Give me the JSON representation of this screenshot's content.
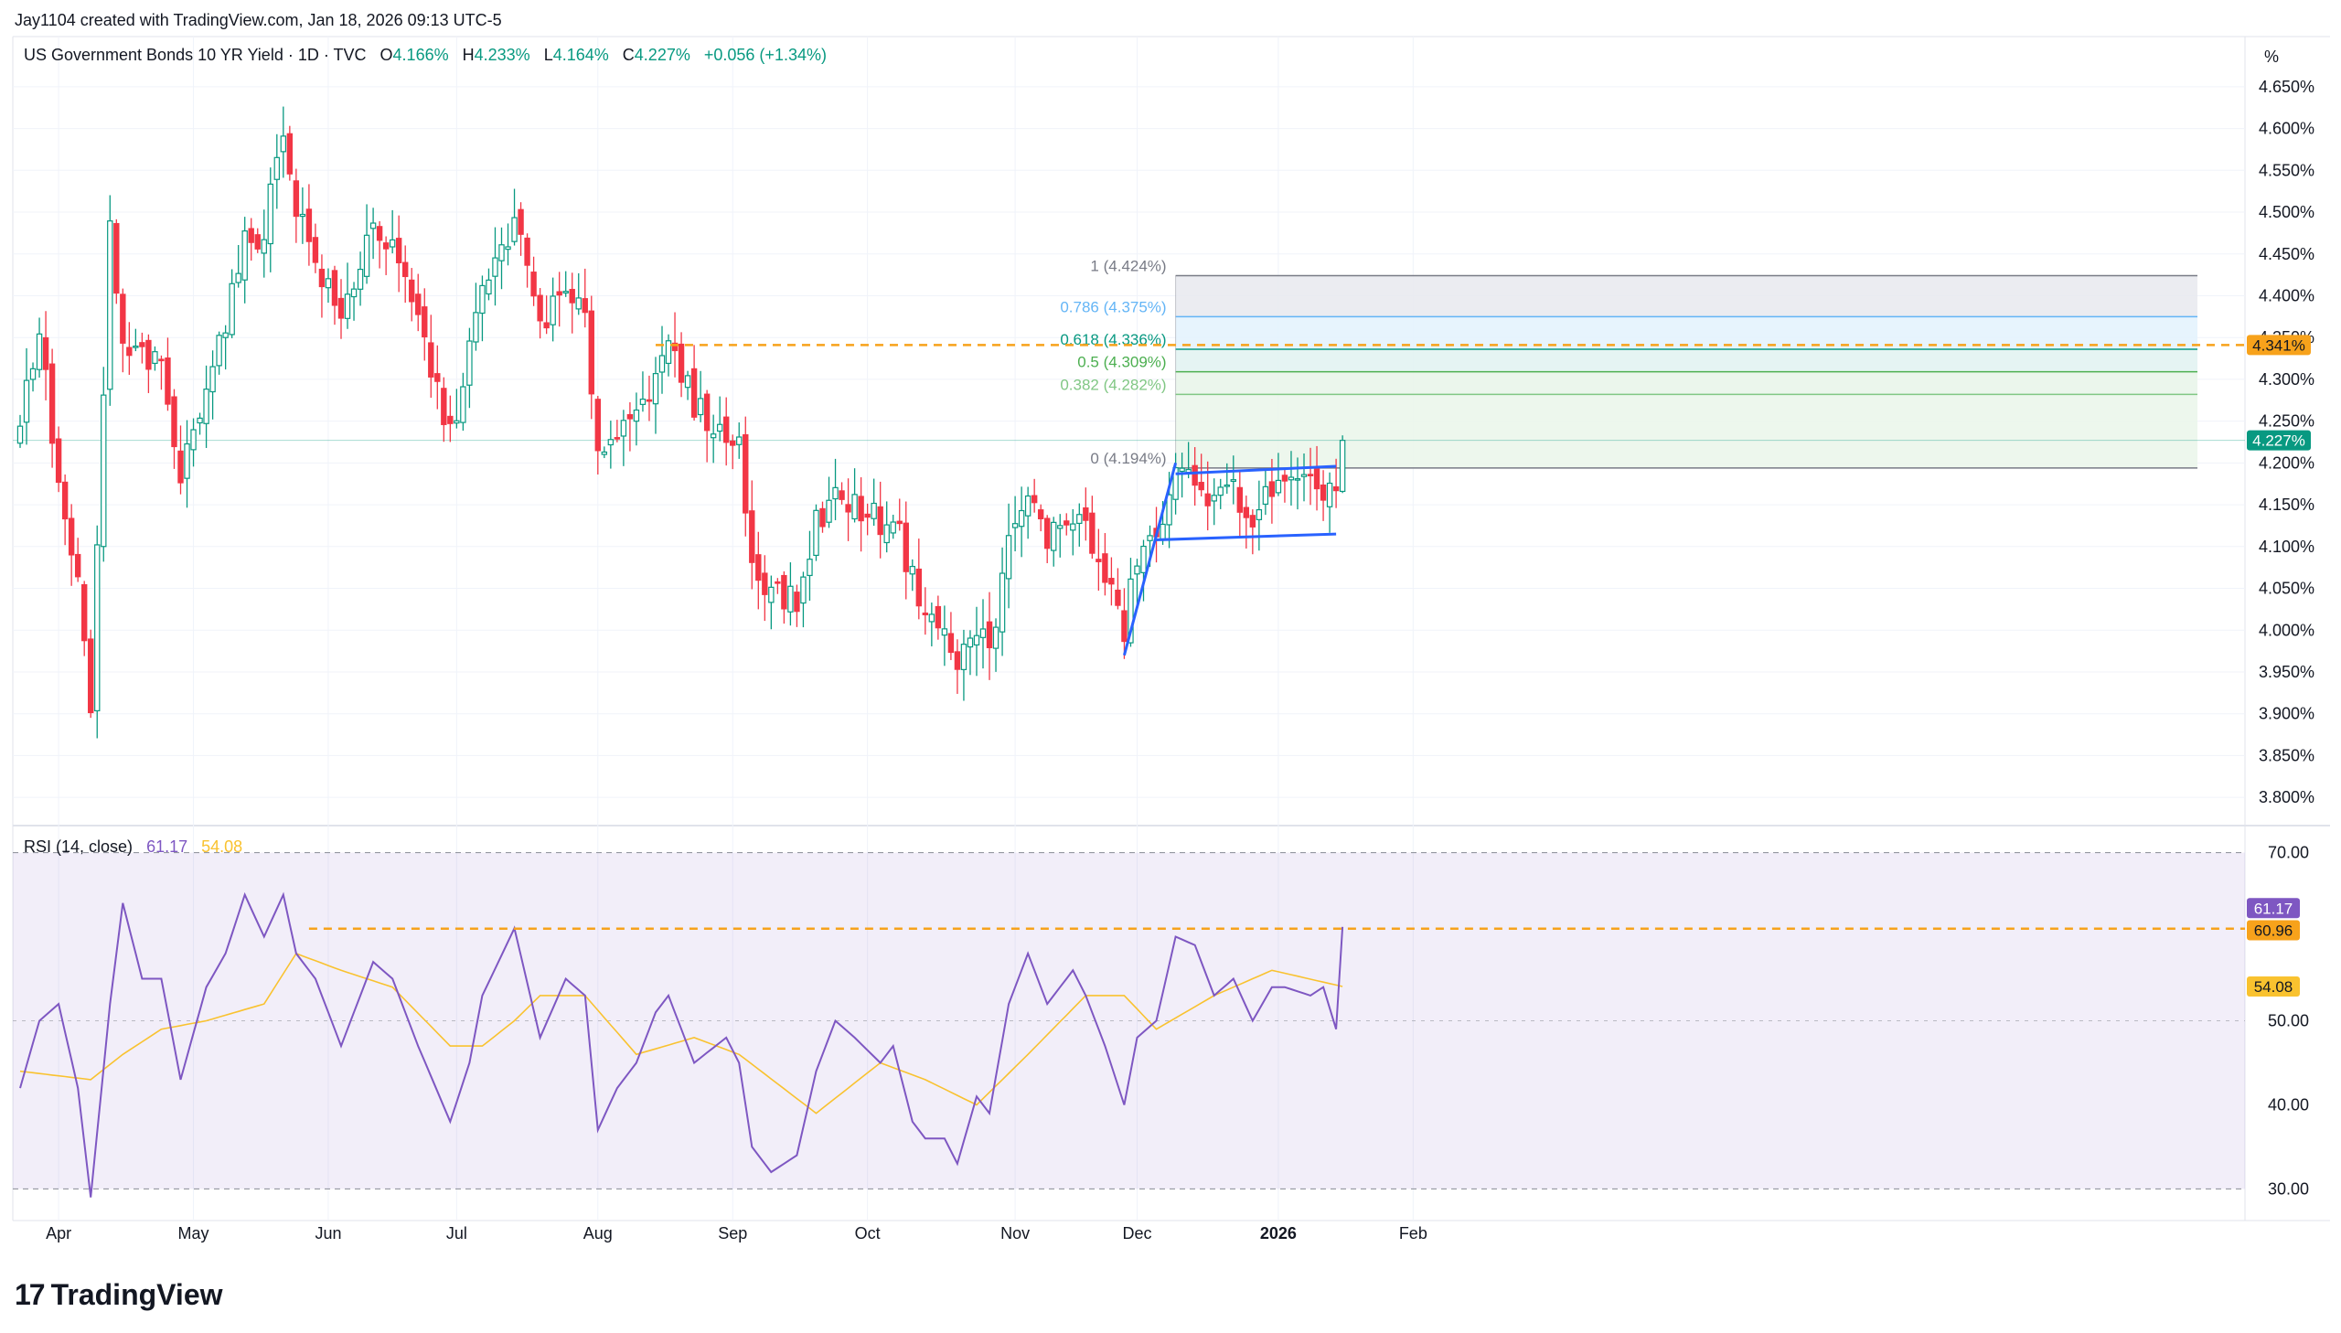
{
  "header": {
    "creator": "Jay1104 created with TradingView.com, Jan 18, 2026 09:13 UTC-5",
    "symbol": "US Government Bonds 10 YR Yield · 1D · TVC",
    "o_label": "O",
    "o_value": "4.166%",
    "h_label": "H",
    "h_value": "4.233%",
    "l_label": "L",
    "l_value": "4.164%",
    "c_label": "C",
    "c_value": "4.227%",
    "change": "+0.056 (+1.34%)"
  },
  "axis_unit": "%",
  "rsi_legend": {
    "label": "RSI (14, close)",
    "rsi": "61.17",
    "ma": "54.08"
  },
  "brand": {
    "name": "TradingView"
  },
  "colors": {
    "up": "#089981",
    "down": "#f23645",
    "rsi": "#7e57c2",
    "rsi_ma": "#f9c22f",
    "orange": "#f7a21b",
    "trend": "#2962ff",
    "fib0": "#4caf50"
  },
  "chart_data": [
    {
      "type": "candlestick",
      "title": "US Government Bonds 10 YR Yield · 1D · TVC",
      "ylim": [
        3.775,
        4.675
      ],
      "y_ticks": [
        "4.650%",
        "4.600%",
        "4.550%",
        "4.500%",
        "4.450%",
        "4.400%",
        "4.350%",
        "4.300%",
        "4.250%",
        "4.200%",
        "4.150%",
        "4.100%",
        "4.050%",
        "4.000%",
        "3.950%",
        "3.900%",
        "3.850%",
        "3.800%"
      ],
      "x_ticks": [
        "Apr",
        "May",
        "Jun",
        "Jul",
        "Aug",
        "Sep",
        "Oct",
        "Nov",
        "Dec",
        "2026",
        "Feb"
      ],
      "close_anchors": [
        [
          "2025-03-24",
          4.25
        ],
        [
          "2025-03-27",
          4.36
        ],
        [
          "2025-04-01",
          4.17
        ],
        [
          "2025-04-04",
          4.05
        ],
        [
          "2025-04-08",
          3.9
        ],
        [
          "2025-04-11",
          4.48
        ],
        [
          "2025-04-15",
          4.33
        ],
        [
          "2025-04-18",
          4.33
        ],
        [
          "2025-04-24",
          4.31
        ],
        [
          "2025-04-29",
          4.18
        ],
        [
          "2025-05-05",
          4.3
        ],
        [
          "2025-05-08",
          4.37
        ],
        [
          "2025-05-13",
          4.46
        ],
        [
          "2025-05-16",
          4.48
        ],
        [
          "2025-05-21",
          4.6
        ],
        [
          "2025-05-23",
          4.51
        ],
        [
          "2025-05-29",
          4.44
        ],
        [
          "2025-06-04",
          4.37
        ],
        [
          "2025-06-11",
          4.49
        ],
        [
          "2025-06-16",
          4.45
        ],
        [
          "2025-06-23",
          4.37
        ],
        [
          "2025-06-30",
          4.23
        ],
        [
          "2025-07-03",
          4.34
        ],
        [
          "2025-07-08",
          4.4
        ],
        [
          "2025-07-15",
          4.49
        ],
        [
          "2025-07-21",
          4.37
        ],
        [
          "2025-07-25",
          4.4
        ],
        [
          "2025-07-30",
          4.37
        ],
        [
          "2025-08-01",
          4.22
        ],
        [
          "2025-08-06",
          4.23
        ],
        [
          "2025-08-11",
          4.28
        ],
        [
          "2025-08-14",
          4.29
        ],
        [
          "2025-08-18",
          4.34
        ],
        [
          "2025-08-22",
          4.27
        ],
        [
          "2025-08-29",
          4.23
        ],
        [
          "2025-09-03",
          4.22
        ],
        [
          "2025-09-05",
          4.08
        ],
        [
          "2025-09-10",
          4.05
        ],
        [
          "2025-09-16",
          4.03
        ],
        [
          "2025-09-19",
          4.13
        ],
        [
          "2025-09-24",
          4.16
        ],
        [
          "2025-09-29",
          4.15
        ],
        [
          "2025-10-03",
          4.13
        ],
        [
          "2025-10-07",
          4.14
        ],
        [
          "2025-10-10",
          4.06
        ],
        [
          "2025-10-14",
          4.03
        ],
        [
          "2025-10-17",
          3.99
        ],
        [
          "2025-10-21",
          3.96
        ],
        [
          "2025-10-24",
          4.0
        ],
        [
          "2025-10-28",
          3.98
        ],
        [
          "2025-10-31",
          4.1
        ],
        [
          "2025-11-05",
          4.16
        ],
        [
          "2025-11-10",
          4.11
        ],
        [
          "2025-11-14",
          4.14
        ],
        [
          "2025-11-18",
          4.12
        ],
        [
          "2025-11-21",
          4.06
        ],
        [
          "2025-11-26",
          4.0
        ],
        [
          "2025-12-01",
          4.09
        ],
        [
          "2025-12-04",
          4.11
        ],
        [
          "2025-12-09",
          4.18
        ],
        [
          "2025-12-12",
          4.19
        ],
        [
          "2025-12-17",
          4.15
        ],
        [
          "2025-12-22",
          4.17
        ],
        [
          "2025-12-26",
          4.13
        ],
        [
          "2025-12-31",
          4.17
        ],
        [
          "2026-01-05",
          4.17
        ],
        [
          "2026-01-09",
          4.17
        ],
        [
          "2026-01-13",
          4.17
        ],
        [
          "2026-01-15",
          4.17
        ],
        [
          "2026-01-16",
          4.227
        ]
      ],
      "last_price_label": "4.227%",
      "horizontal_level": {
        "value": 4.341,
        "label": "4.341%"
      },
      "fibonacci": [
        {
          "level": "1",
          "value": 4.424,
          "label": "1 (4.424%)",
          "color": "#787b86"
        },
        {
          "level": "0.786",
          "value": 4.375,
          "label": "0.786 (4.375%)",
          "color": "#64b5f6"
        },
        {
          "level": "0.618",
          "value": 4.336,
          "label": "0.618 (4.336%)",
          "color": "#089981"
        },
        {
          "level": "0.5",
          "value": 4.309,
          "label": "0.5 (4.309%)",
          "color": "#4caf50"
        },
        {
          "level": "0.382",
          "value": 4.282,
          "label": "0.382 (4.282%)",
          "color": "#81c784"
        },
        {
          "level": "0",
          "value": 4.194,
          "label": "0 (4.194%)",
          "color": "#787b86"
        }
      ],
      "trend_lines": [
        {
          "from": [
            "2025-11-26",
            3.97
          ],
          "to": [
            "2025-12-09",
            4.2
          ]
        },
        {
          "from": [
            "2025-12-09",
            4.187
          ],
          "to": [
            "2026-01-15",
            4.196
          ]
        },
        {
          "from": [
            "2025-12-04",
            4.108
          ],
          "to": [
            "2026-01-15",
            4.115
          ]
        }
      ]
    },
    {
      "type": "line",
      "title": "RSI (14, close)",
      "ylim": [
        27,
        73
      ],
      "y_ticks": [
        "70.00",
        "50.00",
        "40.00",
        "30.00"
      ],
      "band": [
        30,
        70
      ],
      "midline": 50,
      "series": [
        {
          "name": "RSI",
          "color": "#7e57c2",
          "last": "61.17",
          "anchors": [
            [
              "2025-03-24",
              42
            ],
            [
              "2025-03-27",
              50
            ],
            [
              "2025-04-01",
              52
            ],
            [
              "2025-04-04",
              42
            ],
            [
              "2025-04-08",
              29
            ],
            [
              "2025-04-11",
              52
            ],
            [
              "2025-04-15",
              64
            ],
            [
              "2025-04-18",
              55
            ],
            [
              "2025-04-24",
              55
            ],
            [
              "2025-04-29",
              43
            ],
            [
              "2025-05-05",
              54
            ],
            [
              "2025-05-08",
              58
            ],
            [
              "2025-05-13",
              65
            ],
            [
              "2025-05-16",
              60
            ],
            [
              "2025-05-21",
              65
            ],
            [
              "2025-05-23",
              58
            ],
            [
              "2025-05-29",
              55
            ],
            [
              "2025-06-04",
              47
            ],
            [
              "2025-06-11",
              57
            ],
            [
              "2025-06-16",
              55
            ],
            [
              "2025-06-23",
              47
            ],
            [
              "2025-06-30",
              38
            ],
            [
              "2025-07-03",
              45
            ],
            [
              "2025-07-08",
              53
            ],
            [
              "2025-07-15",
              61
            ],
            [
              "2025-07-21",
              48
            ],
            [
              "2025-07-25",
              55
            ],
            [
              "2025-07-30",
              53
            ],
            [
              "2025-08-01",
              37
            ],
            [
              "2025-08-06",
              42
            ],
            [
              "2025-08-11",
              45
            ],
            [
              "2025-08-14",
              51
            ],
            [
              "2025-08-18",
              53
            ],
            [
              "2025-08-22",
              45
            ],
            [
              "2025-08-29",
              48
            ],
            [
              "2025-09-03",
              45
            ],
            [
              "2025-09-05",
              35
            ],
            [
              "2025-09-10",
              32
            ],
            [
              "2025-09-16",
              34
            ],
            [
              "2025-09-19",
              44
            ],
            [
              "2025-09-24",
              50
            ],
            [
              "2025-09-29",
              48
            ],
            [
              "2025-10-03",
              45
            ],
            [
              "2025-10-07",
              47
            ],
            [
              "2025-10-10",
              38
            ],
            [
              "2025-10-14",
              36
            ],
            [
              "2025-10-17",
              36
            ],
            [
              "2025-10-21",
              33
            ],
            [
              "2025-10-24",
              41
            ],
            [
              "2025-10-28",
              39
            ],
            [
              "2025-10-31",
              52
            ],
            [
              "2025-11-05",
              58
            ],
            [
              "2025-11-10",
              52
            ],
            [
              "2025-11-14",
              56
            ],
            [
              "2025-11-18",
              53
            ],
            [
              "2025-11-21",
              47
            ],
            [
              "2025-11-26",
              40
            ],
            [
              "2025-12-01",
              48
            ],
            [
              "2025-12-04",
              50
            ],
            [
              "2025-12-09",
              60
            ],
            [
              "2025-12-12",
              59
            ],
            [
              "2025-12-17",
              53
            ],
            [
              "2025-12-22",
              55
            ],
            [
              "2025-12-26",
              50
            ],
            [
              "2025-12-31",
              54
            ],
            [
              "2026-01-05",
              54
            ],
            [
              "2026-01-09",
              53
            ],
            [
              "2026-01-13",
              54
            ],
            [
              "2026-01-15",
              49
            ],
            [
              "2026-01-16",
              61.17
            ]
          ]
        },
        {
          "name": "RSI-based MA",
          "color": "#f9c22f",
          "last": "54.08",
          "anchors": [
            [
              "2025-03-24",
              44
            ],
            [
              "2025-04-08",
              43
            ],
            [
              "2025-04-15",
              46
            ],
            [
              "2025-04-24",
              49
            ],
            [
              "2025-05-05",
              50
            ],
            [
              "2025-05-16",
              52
            ],
            [
              "2025-05-23",
              58
            ],
            [
              "2025-06-04",
              56
            ],
            [
              "2025-06-16",
              54
            ],
            [
              "2025-06-30",
              47
            ],
            [
              "2025-07-08",
              47
            ],
            [
              "2025-07-15",
              50
            ],
            [
              "2025-07-21",
              53
            ],
            [
              "2025-07-30",
              53
            ],
            [
              "2025-08-11",
              46
            ],
            [
              "2025-08-22",
              48
            ],
            [
              "2025-09-03",
              46
            ],
            [
              "2025-09-19",
              39
            ],
            [
              "2025-10-03",
              45
            ],
            [
              "2025-10-14",
              43
            ],
            [
              "2025-10-24",
              40
            ],
            [
              "2025-11-05",
              46
            ],
            [
              "2025-11-18",
              53
            ],
            [
              "2025-11-26",
              53
            ],
            [
              "2025-12-04",
              49
            ],
            [
              "2025-12-17",
              53
            ],
            [
              "2025-12-31",
              56
            ],
            [
              "2026-01-16",
              54.08
            ]
          ]
        }
      ],
      "horizontal_level": {
        "value": 60.96,
        "label": "60.96"
      }
    }
  ]
}
